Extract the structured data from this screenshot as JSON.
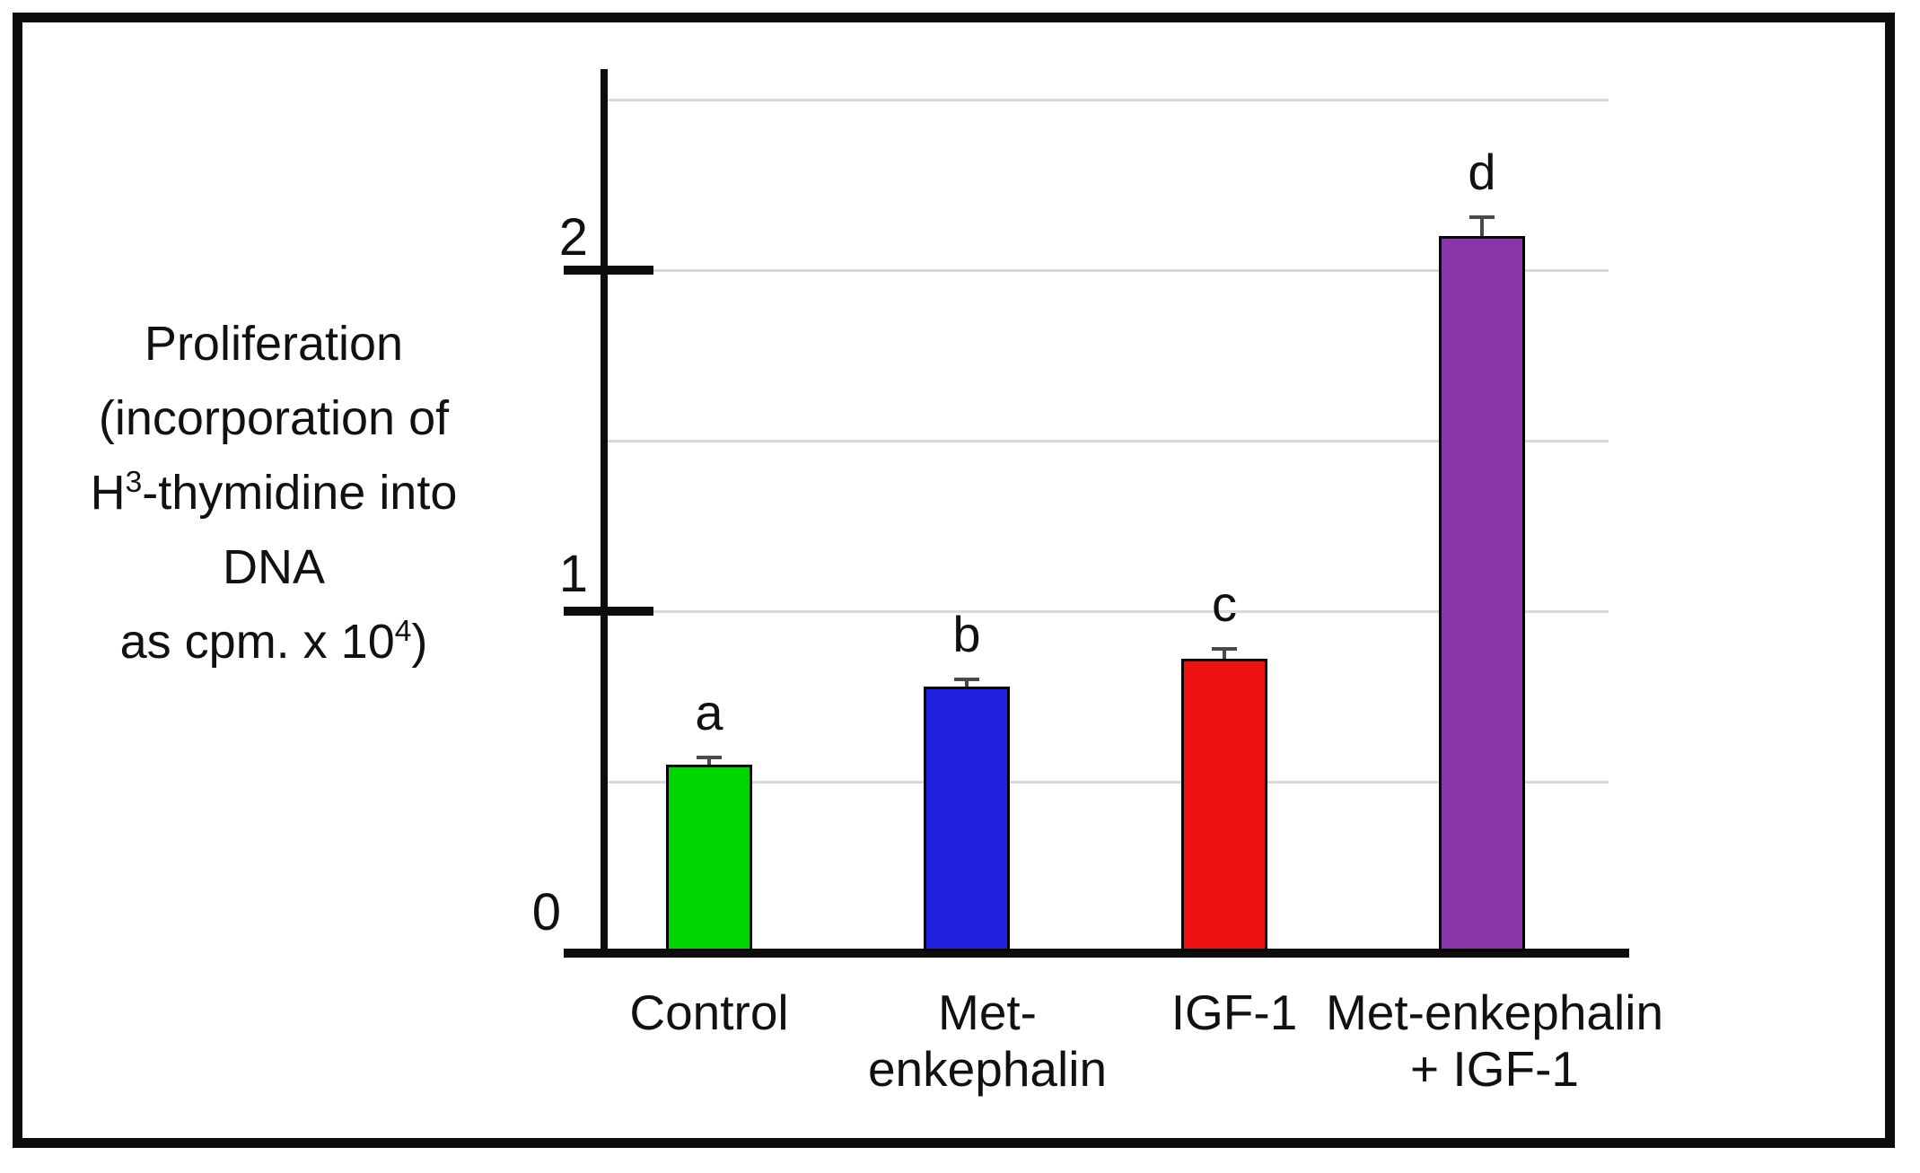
{
  "chart_data": {
    "type": "bar",
    "title": "",
    "ylabel": "Proliferation (incorporation of H3-thymidine into DNA as cpm. x 104)",
    "xlabel": "",
    "categories": [
      "Control",
      "Met-enkephalin",
      "IGF-1",
      "Met-enkephalin + IGF-1"
    ],
    "values": [
      0.55,
      0.78,
      0.86,
      2.1
    ],
    "errors": [
      0.02,
      0.02,
      0.03,
      0.055
    ],
    "sig_letters": [
      "a",
      "b",
      "c",
      "d"
    ],
    "bar_colors": [
      "#00d500",
      "#2121e0",
      "#ee1111",
      "#8a35a8"
    ],
    "bar_border_color": "#000000",
    "ytick_labels": [
      "0",
      "1",
      "2"
    ],
    "ylim": [
      0,
      2.6
    ],
    "gridline_levels": [
      0.5,
      1.0,
      1.5,
      2.0,
      2.5
    ],
    "gridline_color": "#d9d9d9",
    "grid": "horizontal",
    "legend_position": "none"
  },
  "ylabel": {
    "lines": [
      {
        "pre": "Proliferation"
      },
      {
        "pre": "(incorporation of"
      },
      {
        "pre": "H",
        "sup": "3",
        "post": "-thymidine into"
      },
      {
        "pre": "DNA"
      },
      {
        "pre": "as cpm. x 10",
        "sup": "4",
        "post": ")"
      }
    ]
  },
  "axes": {
    "ytick0": "0",
    "ytick1": "1",
    "ytick2": "2"
  },
  "category_labels": {
    "cat1_line1": "Control",
    "cat1_line2": "",
    "cat2_line1": "Met-",
    "cat2_line2": "enkephalin",
    "cat3_line1": "IGF-1",
    "cat3_line2": "",
    "cat4_line1": "Met-enkephalin",
    "cat4_line2": "+ IGF-1"
  }
}
